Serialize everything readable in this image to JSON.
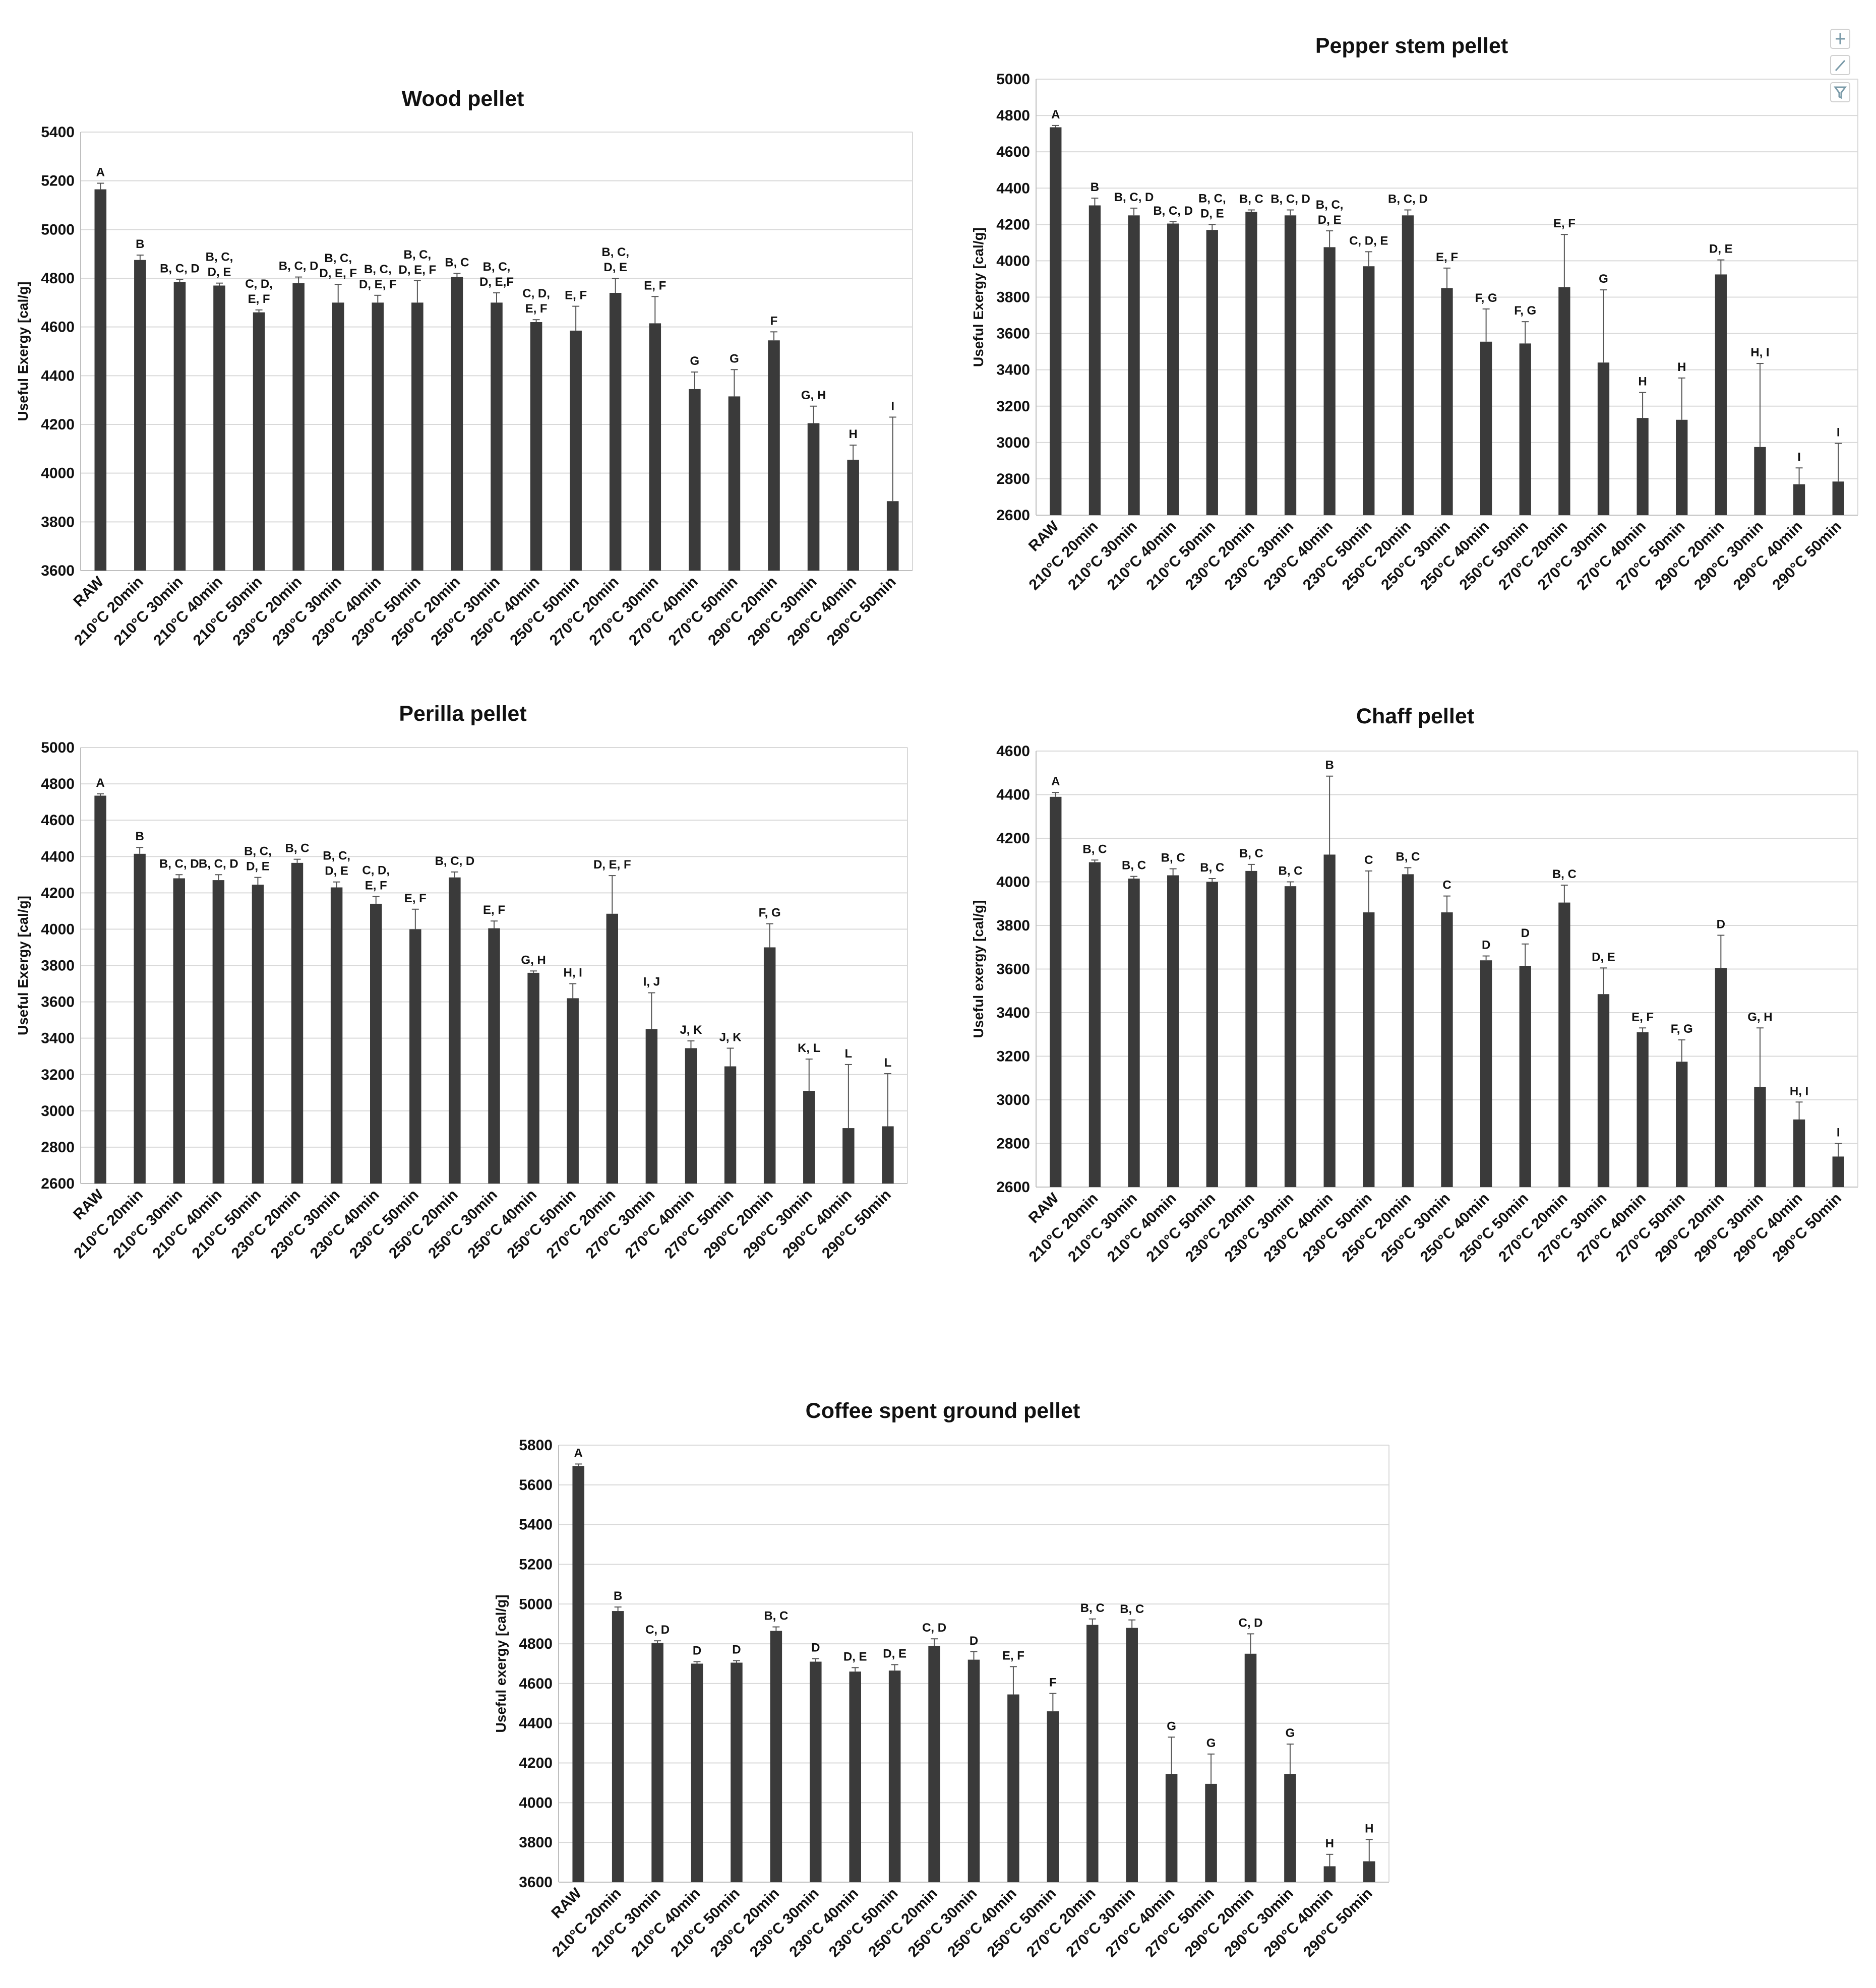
{
  "categories": [
    "RAW",
    "210°C 20min",
    "210°C 30min",
    "210°C 40min",
    "210°C 50min",
    "230°C 20min",
    "230°C 30min",
    "230°C 40min",
    "230°C 50min",
    "250°C 20min",
    "250°C 30min",
    "250°C 40min",
    "250°C 50min",
    "270°C 20min",
    "270°C 30min",
    "270°C 40min",
    "270°C 50min",
    "290°C 20min",
    "290°C 30min",
    "290°C 40min",
    "290°C 50min"
  ],
  "toolbar": {
    "icons": [
      "add-element-icon",
      "brush-style-icon",
      "filter-icon"
    ]
  },
  "chart_data": [
    {
      "type": "bar",
      "title": "Wood pellet",
      "ylabel": "Useful Exergy [cal/g]",
      "ylim": [
        3600,
        5400
      ],
      "yticks": [
        3600,
        3800,
        4000,
        4200,
        4400,
        4600,
        4800,
        5000,
        5200,
        5400
      ],
      "values": [
        5165,
        4875,
        4785,
        4770,
        4660,
        4780,
        4700,
        4700,
        4700,
        4805,
        4700,
        4620,
        4585,
        4740,
        4615,
        4345,
        4315,
        4545,
        4205,
        4055,
        3885
      ],
      "errors": [
        25,
        20,
        10,
        10,
        10,
        25,
        75,
        30,
        90,
        15,
        40,
        10,
        100,
        60,
        110,
        70,
        110,
        35,
        70,
        60,
        345
      ],
      "letters": [
        [
          "A"
        ],
        [
          "B"
        ],
        [
          "B, C, D"
        ],
        [
          "B, C,",
          "D, E"
        ],
        [
          "C, D,",
          "E, F"
        ],
        [
          "B, C, D"
        ],
        [
          "B, C,",
          "D, E, F"
        ],
        [
          "B, C,",
          "D, E, F"
        ],
        [
          "B, C,",
          "D, E, F"
        ],
        [
          "B, C"
        ],
        [
          "B, C,",
          "D, E,F"
        ],
        [
          "C, D,",
          "E, F"
        ],
        [
          "E, F"
        ],
        [
          "B, C,",
          "D, E"
        ],
        [
          "E, F"
        ],
        [
          "G"
        ],
        [
          "G"
        ],
        [
          "F"
        ],
        [
          "G, H"
        ],
        [
          "H"
        ],
        [
          "I"
        ]
      ],
      "grid": true
    },
    {
      "type": "bar",
      "title": "Pepper stem pellet",
      "ylabel": "Useful Exergy [cal/g]",
      "ylim": [
        2600,
        5000
      ],
      "yticks": [
        2600,
        2800,
        3000,
        3200,
        3400,
        3600,
        3800,
        4000,
        4200,
        4400,
        4600,
        4800,
        5000
      ],
      "values": [
        4735,
        4305,
        4250,
        4205,
        4170,
        4270,
        4250,
        4075,
        3970,
        4250,
        3850,
        3555,
        3545,
        3855,
        3440,
        3135,
        3125,
        3925,
        2975,
        2770,
        2785
      ],
      "errors": [
        10,
        40,
        40,
        10,
        30,
        10,
        30,
        90,
        80,
        30,
        110,
        180,
        120,
        290,
        400,
        140,
        230,
        80,
        460,
        90,
        210
      ],
      "letters": [
        [
          "A"
        ],
        [
          "B"
        ],
        [
          "B, C, D"
        ],
        [
          "B, C, D"
        ],
        [
          "B, C,",
          "D, E"
        ],
        [
          "B, C"
        ],
        [
          "B, C, D"
        ],
        [
          "B, C,",
          "D, E"
        ],
        [
          "C, D, E"
        ],
        [
          "B, C, D"
        ],
        [
          "E, F"
        ],
        [
          "F, G"
        ],
        [
          "F, G"
        ],
        [
          "E, F"
        ],
        [
          "G"
        ],
        [
          "H"
        ],
        [
          "H"
        ],
        [
          "D, E"
        ],
        [
          "H, I"
        ],
        [
          "I"
        ],
        [
          "I"
        ]
      ],
      "grid": true
    },
    {
      "type": "bar",
      "title": "Perilla pellet",
      "ylabel": "Useful Exergy [cal/g]",
      "ylim": [
        2600,
        5000
      ],
      "yticks": [
        2600,
        2800,
        3000,
        3200,
        3400,
        3600,
        3800,
        4000,
        4200,
        4400,
        4600,
        4800,
        5000
      ],
      "values": [
        4735,
        4415,
        4280,
        4270,
        4245,
        4365,
        4230,
        4140,
        4000,
        4285,
        4005,
        3760,
        3620,
        4085,
        3450,
        3345,
        3245,
        3900,
        3110,
        2905,
        2915
      ],
      "errors": [
        10,
        35,
        20,
        30,
        40,
        20,
        30,
        40,
        110,
        30,
        40,
        10,
        80,
        210,
        200,
        40,
        100,
        130,
        175,
        350,
        290
      ],
      "letters": [
        [
          "A"
        ],
        [
          "B"
        ],
        [
          "B, C, D"
        ],
        [
          "B, C, D"
        ],
        [
          "B, C,",
          "D, E"
        ],
        [
          "B, C"
        ],
        [
          "B, C,",
          "D, E"
        ],
        [
          "C, D,",
          "E, F"
        ],
        [
          "E, F"
        ],
        [
          "B, C, D"
        ],
        [
          "E, F"
        ],
        [
          "G, H"
        ],
        [
          "H, I"
        ],
        [
          "D, E, F"
        ],
        [
          "I, J"
        ],
        [
          "J, K"
        ],
        [
          "J, K"
        ],
        [
          "F, G"
        ],
        [
          "K, L"
        ],
        [
          "L"
        ],
        [
          "L"
        ]
      ],
      "grid": true
    },
    {
      "type": "bar",
      "title": "Chaff pellet",
      "ylabel": "Useful exergy [cal/g]",
      "ylim": [
        2600,
        4600
      ],
      "yticks": [
        2600,
        2800,
        3000,
        3200,
        3400,
        3600,
        3800,
        4000,
        4200,
        4400,
        4600
      ],
      "values": [
        4390,
        4090,
        4015,
        4030,
        4000,
        4050,
        3980,
        4125,
        3860,
        4035,
        3860,
        3640,
        3615,
        3905,
        3485,
        3310,
        3175,
        3605,
        3060,
        2910,
        2740
      ],
      "errors": [
        20,
        10,
        10,
        30,
        15,
        30,
        20,
        360,
        190,
        30,
        75,
        20,
        100,
        80,
        120,
        20,
        100,
        150,
        270,
        80,
        60
      ],
      "letters": [
        [
          "A"
        ],
        [
          "B, C"
        ],
        [
          "B, C"
        ],
        [
          "B, C"
        ],
        [
          "B, C"
        ],
        [
          "B, C"
        ],
        [
          "B, C"
        ],
        [
          "B"
        ],
        [
          "C"
        ],
        [
          "B, C"
        ],
        [
          "C"
        ],
        [
          "D"
        ],
        [
          "D"
        ],
        [
          "B, C"
        ],
        [
          "D, E"
        ],
        [
          "E, F"
        ],
        [
          "F, G"
        ],
        [
          "D"
        ],
        [
          "G, H"
        ],
        [
          "H, I"
        ],
        [
          "I"
        ]
      ],
      "grid": true
    },
    {
      "type": "bar",
      "title": "Coffee spent ground pellet",
      "ylabel": "Useful exergy [cal/g]",
      "ylim": [
        3600,
        5800
      ],
      "yticks": [
        3600,
        3800,
        4000,
        4200,
        4400,
        4600,
        4800,
        5000,
        5200,
        5400,
        5600,
        5800
      ],
      "values": [
        5695,
        4965,
        4805,
        4700,
        4705,
        4865,
        4710,
        4660,
        4665,
        4790,
        4720,
        4545,
        4460,
        4895,
        4880,
        4145,
        4095,
        4750,
        4145,
        3680,
        3705
      ],
      "errors": [
        10,
        20,
        10,
        10,
        10,
        20,
        15,
        20,
        30,
        35,
        40,
        140,
        90,
        30,
        40,
        185,
        150,
        100,
        150,
        60,
        110
      ],
      "letters": [
        [
          "A"
        ],
        [
          "B"
        ],
        [
          "C, D"
        ],
        [
          "D"
        ],
        [
          "D"
        ],
        [
          "B, C"
        ],
        [
          "D"
        ],
        [
          "D, E"
        ],
        [
          "D, E"
        ],
        [
          "C, D"
        ],
        [
          "D"
        ],
        [
          "E, F"
        ],
        [
          "F"
        ],
        [
          "B, C"
        ],
        [
          "B, C"
        ],
        [
          "G"
        ],
        [
          "G"
        ],
        [
          "C, D"
        ],
        [
          "G"
        ],
        [
          "H"
        ],
        [
          "H"
        ]
      ],
      "grid": true
    }
  ]
}
